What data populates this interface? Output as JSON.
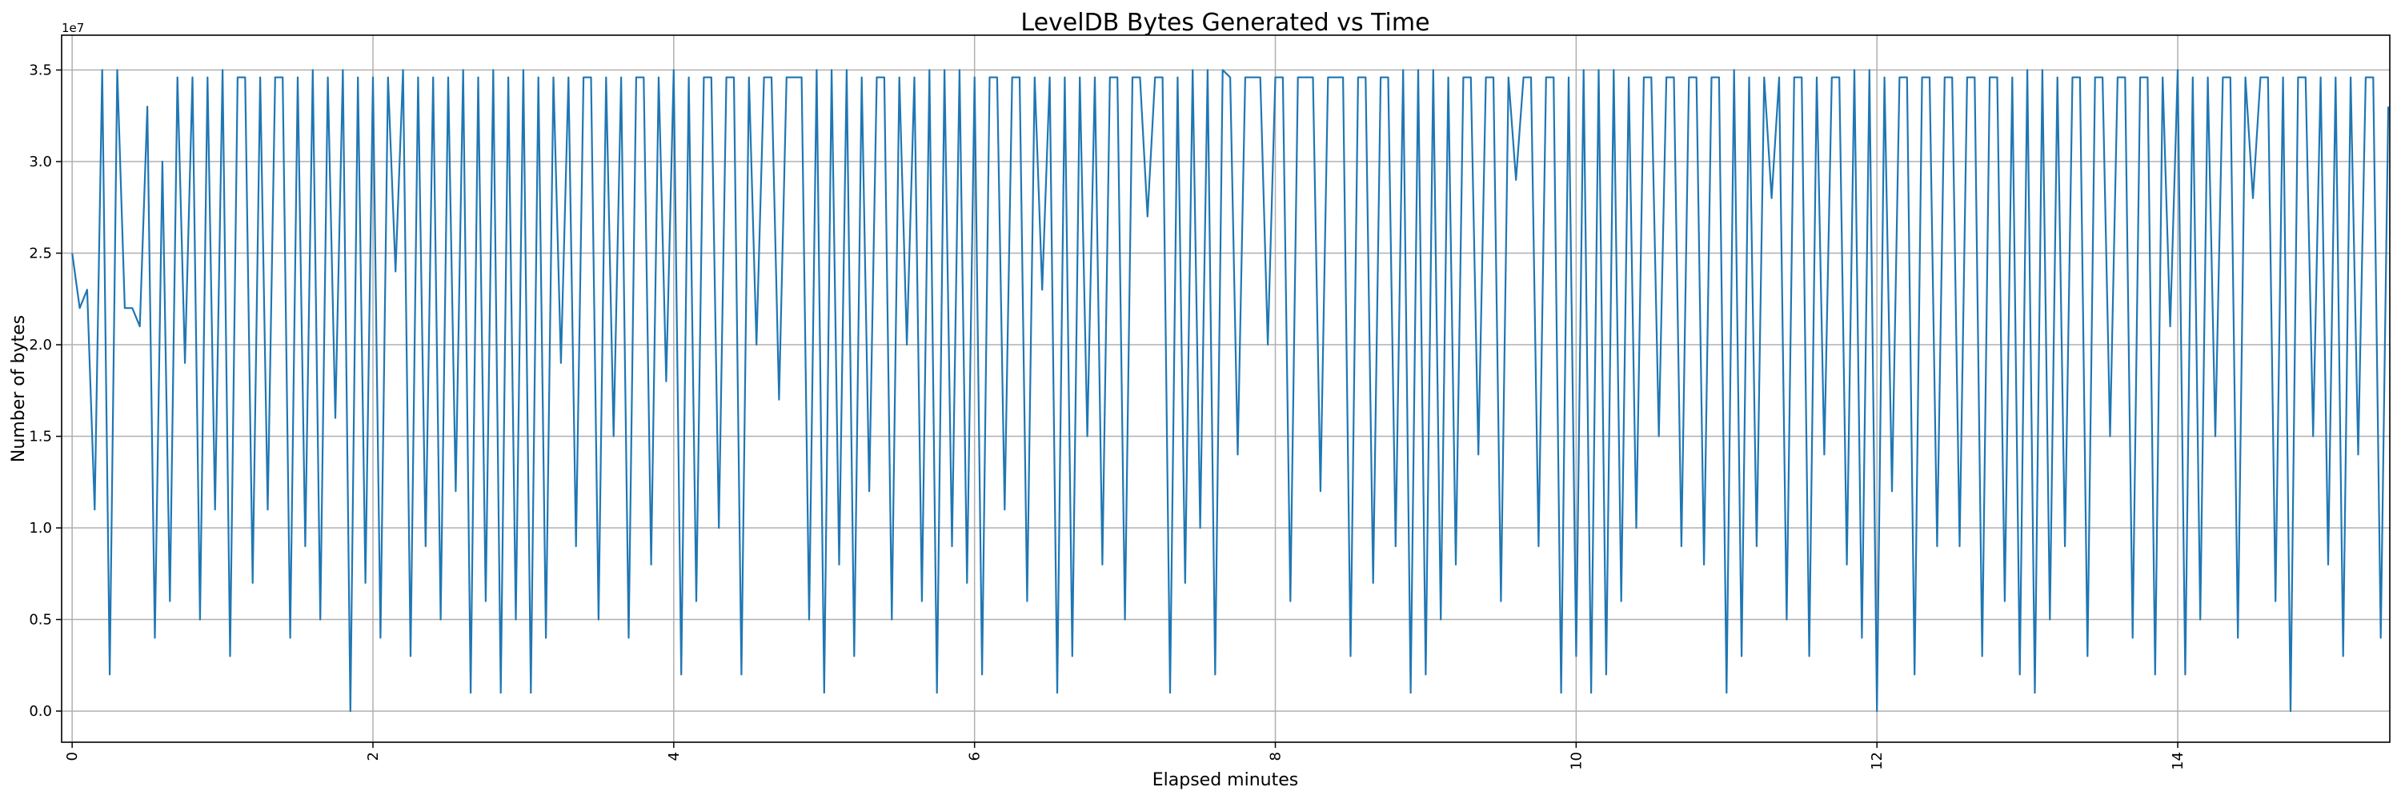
{
  "chart_data": {
    "type": "line",
    "title": "LevelDB Bytes Generated vs Time",
    "xlabel": "Elapsed minutes",
    "ylabel": "Number of bytes",
    "y_offset_label": "1e7",
    "y_scale": 10000000,
    "xlim": [
      -0.07,
      15.41
    ],
    "ylim": [
      -0.17,
      3.69
    ],
    "x_ticks": [
      0,
      2,
      4,
      6,
      8,
      10,
      12,
      14
    ],
    "x_tick_labels": [
      "0",
      "2",
      "4",
      "6",
      "8",
      "10",
      "12",
      "14"
    ],
    "y_ticks": [
      0,
      0.5,
      1.0,
      1.5,
      2.0,
      2.5,
      3.0,
      3.5
    ],
    "y_tick_labels": [
      "0.0",
      "0.5",
      "1.0",
      "1.5",
      "2.0",
      "2.5",
      "3.0",
      "3.5"
    ],
    "grid": true,
    "line_color": "#1f77b4",
    "series": [
      {
        "name": "bytes",
        "x_start": 0,
        "x_step": 0.05,
        "y": [
          2.5,
          2.2,
          2.3,
          1.1,
          3.5,
          0.2,
          3.5,
          2.2,
          2.2,
          2.1,
          3.3,
          0.4,
          3.0,
          0.6,
          3.46,
          1.9,
          3.46,
          0.5,
          3.46,
          1.1,
          3.5,
          0.3,
          3.46,
          3.46,
          0.7,
          3.46,
          1.1,
          3.46,
          3.46,
          0.4,
          3.46,
          0.9,
          3.5,
          0.5,
          3.46,
          1.6,
          3.5,
          0.0,
          3.46,
          0.7,
          3.46,
          0.4,
          3.46,
          2.4,
          3.5,
          0.3,
          3.46,
          0.9,
          3.46,
          0.5,
          3.46,
          1.2,
          3.5,
          0.1,
          3.46,
          0.6,
          3.5,
          0.1,
          3.46,
          0.5,
          3.5,
          0.1,
          3.46,
          0.4,
          3.46,
          1.9,
          3.46,
          0.9,
          3.46,
          3.46,
          0.5,
          3.46,
          1.5,
          3.46,
          0.4,
          3.46,
          3.46,
          0.8,
          3.46,
          1.8,
          3.5,
          0.2,
          3.46,
          0.6,
          3.46,
          3.46,
          1.0,
          3.46,
          3.46,
          0.2,
          3.46,
          2.0,
          3.46,
          3.46,
          1.7,
          3.46,
          3.46,
          3.46,
          0.5,
          3.5,
          0.1,
          3.5,
          0.8,
          3.5,
          0.3,
          3.46,
          1.2,
          3.46,
          3.46,
          0.5,
          3.46,
          2.0,
          3.46,
          0.6,
          3.5,
          0.1,
          3.5,
          0.9,
          3.5,
          0.7,
          3.46,
          0.2,
          3.46,
          3.46,
          1.1,
          3.46,
          3.46,
          0.6,
          3.46,
          2.3,
          3.46,
          0.1,
          3.46,
          0.3,
          3.46,
          1.5,
          3.46,
          0.8,
          3.46,
          3.46,
          0.5,
          3.46,
          3.46,
          2.7,
          3.46,
          3.46,
          0.1,
          3.46,
          0.7,
          3.5,
          1.0,
          3.5,
          0.2,
          3.5,
          3.46,
          1.4,
          3.46,
          3.46,
          3.46,
          2.0,
          3.46,
          3.46,
          0.6,
          3.46,
          3.46,
          3.46,
          1.2,
          3.46,
          3.46,
          3.46,
          0.3,
          3.46,
          3.46,
          0.7,
          3.46,
          3.46,
          0.9,
          3.5,
          0.1,
          3.5,
          0.2,
          3.5,
          0.5,
          3.46,
          0.8,
          3.46,
          3.46,
          1.4,
          3.46,
          3.46,
          0.6,
          3.46,
          2.9,
          3.46,
          3.46,
          0.9,
          3.46,
          3.46,
          0.1,
          3.46,
          0.3,
          3.5,
          0.1,
          3.5,
          0.2,
          3.5,
          0.6,
          3.46,
          1.0,
          3.46,
          3.46,
          1.5,
          3.46,
          3.46,
          0.9,
          3.46,
          3.46,
          0.8,
          3.46,
          3.46,
          0.1,
          3.5,
          0.3,
          3.46,
          0.9,
          3.46,
          2.8,
          3.46,
          0.5,
          3.46,
          3.46,
          0.3,
          3.46,
          1.4,
          3.46,
          3.46,
          0.8,
          3.5,
          0.4,
          3.5,
          0.0,
          3.46,
          1.2,
          3.46,
          3.46,
          0.2,
          3.46,
          3.46,
          0.9,
          3.46,
          3.46,
          0.9,
          3.46,
          3.46,
          0.3,
          3.46,
          3.46,
          0.6,
          3.46,
          0.2,
          3.5,
          0.1,
          3.5,
          0.5,
          3.46,
          0.9,
          3.46,
          3.46,
          0.3,
          3.46,
          3.46,
          1.5,
          3.46,
          3.46,
          0.4,
          3.46,
          3.46,
          0.2,
          3.46,
          2.1,
          3.5,
          0.2,
          3.46,
          0.5,
          3.46,
          1.5,
          3.46,
          3.46,
          0.4,
          3.46,
          2.8,
          3.46,
          3.46,
          0.6,
          3.46,
          0.0,
          3.46,
          3.46,
          1.5,
          3.46,
          0.8,
          3.46,
          0.3,
          3.46,
          1.4,
          3.46,
          3.46,
          0.4,
          3.3
        ]
      }
    ]
  }
}
